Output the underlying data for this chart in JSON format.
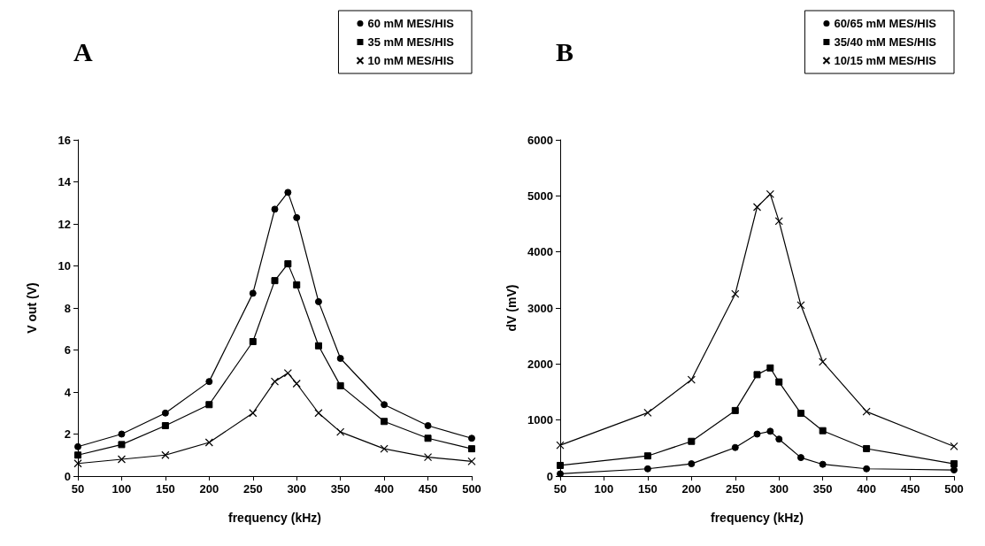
{
  "chart_data": [
    {
      "type": "line",
      "title": "A",
      "xlabel": "frequency (kHz)",
      "ylabel": "V out (V)",
      "xlim": [
        50,
        500
      ],
      "xticks": [
        50,
        100,
        150,
        200,
        250,
        300,
        350,
        400,
        450,
        500
      ],
      "ylim": [
        0,
        16
      ],
      "yticks": [
        0,
        2,
        4,
        6,
        8,
        10,
        12,
        14,
        16
      ],
      "grid": false,
      "legend": "top right",
      "line_style": "solid",
      "x": [
        50,
        100,
        150,
        200,
        250,
        275,
        290,
        300,
        325,
        350,
        400,
        450,
        500
      ],
      "series": [
        {
          "name": "60 mM MES/HIS",
          "color": "#000000",
          "marker": "circle",
          "values": [
            1.4,
            2.0,
            3.0,
            4.5,
            8.7,
            12.7,
            13.5,
            12.3,
            8.3,
            5.6,
            3.4,
            2.4,
            1.8
          ]
        },
        {
          "name": "35 mM MES/HIS",
          "color": "#000000",
          "marker": "square",
          "values": [
            1.0,
            1.5,
            2.4,
            3.4,
            6.4,
            9.3,
            10.1,
            9.1,
            6.2,
            4.3,
            2.6,
            1.8,
            1.3
          ]
        },
        {
          "name": "10 mM MES/HIS",
          "color": "#000000",
          "marker": "cross",
          "values": [
            0.6,
            0.8,
            1.0,
            1.6,
            3.0,
            4.5,
            4.9,
            4.4,
            3.0,
            2.1,
            1.3,
            0.9,
            0.7
          ]
        }
      ]
    },
    {
      "type": "line",
      "title": "B",
      "xlabel": "frequency (kHz)",
      "ylabel": "dV (mV)",
      "xlim": [
        50,
        500
      ],
      "xticks": [
        50,
        100,
        150,
        200,
        250,
        300,
        350,
        400,
        450,
        500
      ],
      "ylim": [
        0,
        6000
      ],
      "yticks": [
        0,
        1000,
        2000,
        3000,
        4000,
        5000,
        6000
      ],
      "grid": false,
      "legend": "top right",
      "line_style": "solid",
      "x": [
        50,
        150,
        200,
        250,
        275,
        290,
        300,
        325,
        350,
        400,
        500
      ],
      "series": [
        {
          "name": "60/65 mM MES/HIS",
          "color": "#000000",
          "marker": "circle",
          "values": [
            40,
            130,
            220,
            510,
            750,
            800,
            660,
            330,
            210,
            130,
            110
          ]
        },
        {
          "name": "35/40 mM MES/HIS",
          "color": "#000000",
          "marker": "square",
          "values": [
            190,
            360,
            620,
            1170,
            1810,
            1930,
            1680,
            1120,
            810,
            490,
            220
          ]
        },
        {
          "name": "10/15 mM MES/HIS",
          "color": "#000000",
          "marker": "cross",
          "values": [
            550,
            1130,
            1720,
            3250,
            4800,
            5030,
            4550,
            3050,
            2040,
            1150,
            530
          ]
        }
      ]
    }
  ]
}
